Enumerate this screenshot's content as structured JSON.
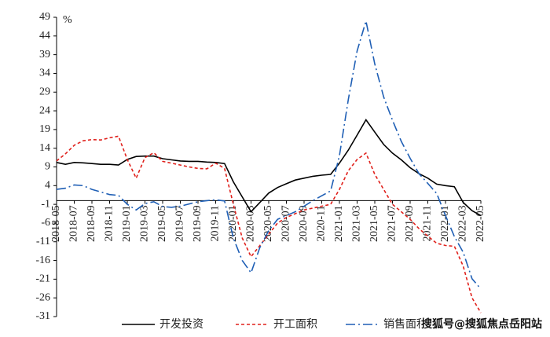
{
  "chart_data": {
    "type": "line",
    "unit": "%",
    "categories": [
      "2018-05",
      null,
      "2018-07",
      null,
      "2018-09",
      null,
      "2018-11",
      null,
      "2019-01",
      null,
      "2019-03",
      null,
      "2019-05",
      null,
      "2019-07",
      null,
      "2019-09",
      null,
      "2019-11",
      null,
      "2020-01",
      null,
      "2020-03",
      null,
      "2020-05",
      null,
      "2020-07",
      null,
      "2020-09",
      null,
      "2020-11",
      null,
      "2021-01",
      null,
      "2021-03",
      null,
      "2021-05",
      null,
      "2021-07",
      null,
      "2021-09",
      null,
      "2021-11",
      null,
      "2022-01",
      null,
      "2022-03",
      null,
      "2022-05"
    ],
    "series": [
      {
        "name": "开发投资",
        "color": "#000000",
        "dash": "none",
        "values": [
          10.2,
          9.7,
          10.2,
          10.1,
          9.9,
          9.7,
          9.7,
          9.5,
          11.0,
          11.8,
          11.9,
          11.9,
          11.2,
          10.9,
          10.6,
          10.5,
          10.5,
          10.3,
          10.2,
          9.9,
          5.0,
          1.0,
          -3.0,
          -0.5,
          2.0,
          3.5,
          4.5,
          5.5,
          6.0,
          6.5,
          6.8,
          7.0,
          10.0,
          13.5,
          17.5,
          21.6,
          18.3,
          15.0,
          12.7,
          10.9,
          8.8,
          7.2,
          6.0,
          4.4,
          4.0,
          3.7,
          -0.5,
          -2.7,
          -4.0
        ]
      },
      {
        "name": "开工面积",
        "color": "#e0201b",
        "dash": "4 3",
        "values": [
          10.6,
          12.5,
          14.8,
          16.0,
          16.3,
          16.2,
          16.8,
          17.2,
          11.0,
          6.0,
          11.5,
          12.8,
          10.5,
          10.0,
          9.5,
          9.0,
          8.6,
          8.5,
          10.0,
          8.6,
          -1.0,
          -10.0,
          -15.0,
          -12.0,
          -9.0,
          -6.0,
          -4.5,
          -3.5,
          -2.5,
          -2.0,
          -1.5,
          -1.0,
          3.0,
          8.0,
          11.0,
          12.7,
          7.0,
          3.0,
          -1.0,
          -3.0,
          -5.0,
          -7.5,
          -9.5,
          -11.4,
          -12.0,
          -12.2,
          -17.5,
          -26.0,
          -30.0
        ]
      },
      {
        "name": "销售面积",
        "color": "#1f5fb5",
        "dash": "12 4 2 4",
        "values": [
          3.0,
          3.3,
          4.2,
          4.0,
          3.0,
          2.3,
          1.6,
          1.4,
          -1.0,
          -2.5,
          -0.8,
          -0.3,
          -1.6,
          -1.8,
          -1.5,
          -0.9,
          -0.3,
          0.0,
          0.2,
          -0.1,
          -10.0,
          -16.0,
          -19.3,
          -12.5,
          -8.0,
          -5.0,
          -4.0,
          -3.0,
          -1.5,
          0.0,
          1.3,
          2.6,
          12.0,
          27.0,
          40.0,
          48.0,
          36.5,
          27.7,
          21.5,
          15.8,
          11.3,
          7.2,
          4.6,
          1.9,
          -4.0,
          -9.6,
          -13.8,
          -20.9,
          -23.6
        ]
      }
    ],
    "ylim": [
      -31,
      49
    ],
    "yticks": [
      49,
      44,
      39,
      34,
      29,
      24,
      19,
      14,
      9,
      4,
      -1,
      -6,
      -11,
      -16,
      -21,
      -26,
      -31
    ],
    "watermark": "搜狐号@搜狐焦点岳阳站"
  }
}
